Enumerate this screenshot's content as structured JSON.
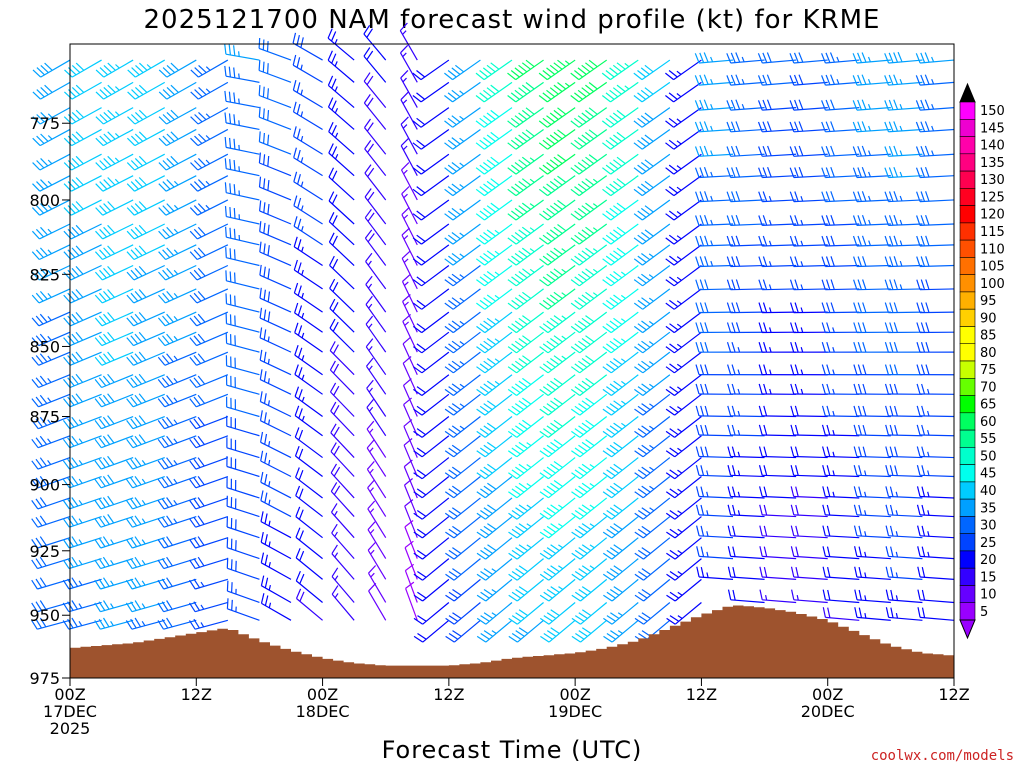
{
  "chart_data": {
    "type": "wind-barb time-height profile",
    "title": "2025121700 NAM forecast wind profile (kt) for KRME",
    "xlabel": "Forecast Time (UTC)",
    "ylabel": "",
    "credit": "coolwx.com/models",
    "x_ticks": [
      {
        "hour": 0,
        "lines": [
          "00Z",
          "17DEC",
          "2025"
        ]
      },
      {
        "hour": 12,
        "lines": [
          "12Z"
        ]
      },
      {
        "hour": 24,
        "lines": [
          "00Z",
          "18DEC"
        ]
      },
      {
        "hour": 36,
        "lines": [
          "12Z"
        ]
      },
      {
        "hour": 48,
        "lines": [
          "00Z",
          "19DEC"
        ]
      },
      {
        "hour": 60,
        "lines": [
          "12Z"
        ]
      },
      {
        "hour": 72,
        "lines": [
          "00Z",
          "20DEC"
        ]
      },
      {
        "hour": 84,
        "lines": [
          "12Z"
        ]
      }
    ],
    "xlim_hours": [
      0,
      84
    ],
    "y_ticks": [
      "775",
      "800",
      "825",
      "850",
      "875",
      "900",
      "925",
      "950",
      "975"
    ],
    "ylim_hpa": [
      750,
      975
    ],
    "barb_levels_hpa": [
      755,
      762,
      770,
      777,
      785,
      792,
      800,
      808,
      815,
      822,
      830,
      838,
      845,
      852,
      860,
      867,
      875,
      882,
      890,
      897,
      905,
      912,
      920,
      928,
      936,
      945,
      952
    ],
    "barb_interval_hours": 3,
    "colorbar": {
      "labels": [
        "150",
        "145",
        "140",
        "135",
        "130",
        "125",
        "120",
        "115",
        "110",
        "105",
        "100",
        "95",
        "90",
        "85",
        "80",
        "75",
        "70",
        "65",
        "60",
        "55",
        "50",
        "45",
        "40",
        "35",
        "30",
        "25",
        "20",
        "15",
        "10",
        "5"
      ],
      "colors": [
        "#ff00ff",
        "#ee00d0",
        "#ff00aa",
        "#ff0080",
        "#ff0050",
        "#ff0020",
        "#ff0000",
        "#ff3000",
        "#ff5000",
        "#ff7000",
        "#ff9000",
        "#ffb000",
        "#ffd000",
        "#ffff00",
        "#ffff00",
        "#c8ff00",
        "#66ff00",
        "#00ff00",
        "#00ff60",
        "#00ff90",
        "#00ffcc",
        "#00ffee",
        "#00ccff",
        "#00a0ff",
        "#0066ff",
        "#0044ff",
        "#0000ff",
        "#3300ff",
        "#6600ff",
        "#9900ff"
      ],
      "top_arrow_color": "#000000",
      "bottom_arrow_color": "#9900ff"
    },
    "terrain_surface_hpa": [
      {
        "hour": 0,
        "p": 963
      },
      {
        "hour": 3,
        "p": 962
      },
      {
        "hour": 6,
        "p": 961
      },
      {
        "hour": 9,
        "p": 959
      },
      {
        "hour": 12,
        "p": 957
      },
      {
        "hour": 15,
        "p": 955
      },
      {
        "hour": 18,
        "p": 960
      },
      {
        "hour": 21,
        "p": 964
      },
      {
        "hour": 24,
        "p": 967
      },
      {
        "hour": 27,
        "p": 969
      },
      {
        "hour": 30,
        "p": 970
      },
      {
        "hour": 33,
        "p": 970
      },
      {
        "hour": 36,
        "p": 970
      },
      {
        "hour": 39,
        "p": 969
      },
      {
        "hour": 42,
        "p": 967
      },
      {
        "hour": 45,
        "p": 966
      },
      {
        "hour": 48,
        "p": 965
      },
      {
        "hour": 51,
        "p": 963
      },
      {
        "hour": 54,
        "p": 960
      },
      {
        "hour": 57,
        "p": 955
      },
      {
        "hour": 60,
        "p": 950
      },
      {
        "hour": 63,
        "p": 946
      },
      {
        "hour": 66,
        "p": 947
      },
      {
        "hour": 69,
        "p": 949
      },
      {
        "hour": 72,
        "p": 952
      },
      {
        "hour": 75,
        "p": 957
      },
      {
        "hour": 78,
        "p": 962
      },
      {
        "hour": 81,
        "p": 965
      },
      {
        "hour": 84,
        "p": 966
      }
    ],
    "wind_regimes": [
      {
        "hours": [
          0,
          18
        ],
        "direction_from": "southwest",
        "speed_kt_range": [
          30,
          50
        ]
      },
      {
        "hours": [
          18,
          36
        ],
        "direction_from": "northwest to north",
        "speed_kt_range": [
          5,
          45
        ]
      },
      {
        "hours": [
          36,
          63
        ],
        "direction_from": "southwest",
        "speed_kt_range": [
          15,
          75
        ]
      },
      {
        "hours": [
          63,
          84
        ],
        "direction_from": "west",
        "speed_kt_range": [
          10,
          45
        ]
      }
    ]
  }
}
